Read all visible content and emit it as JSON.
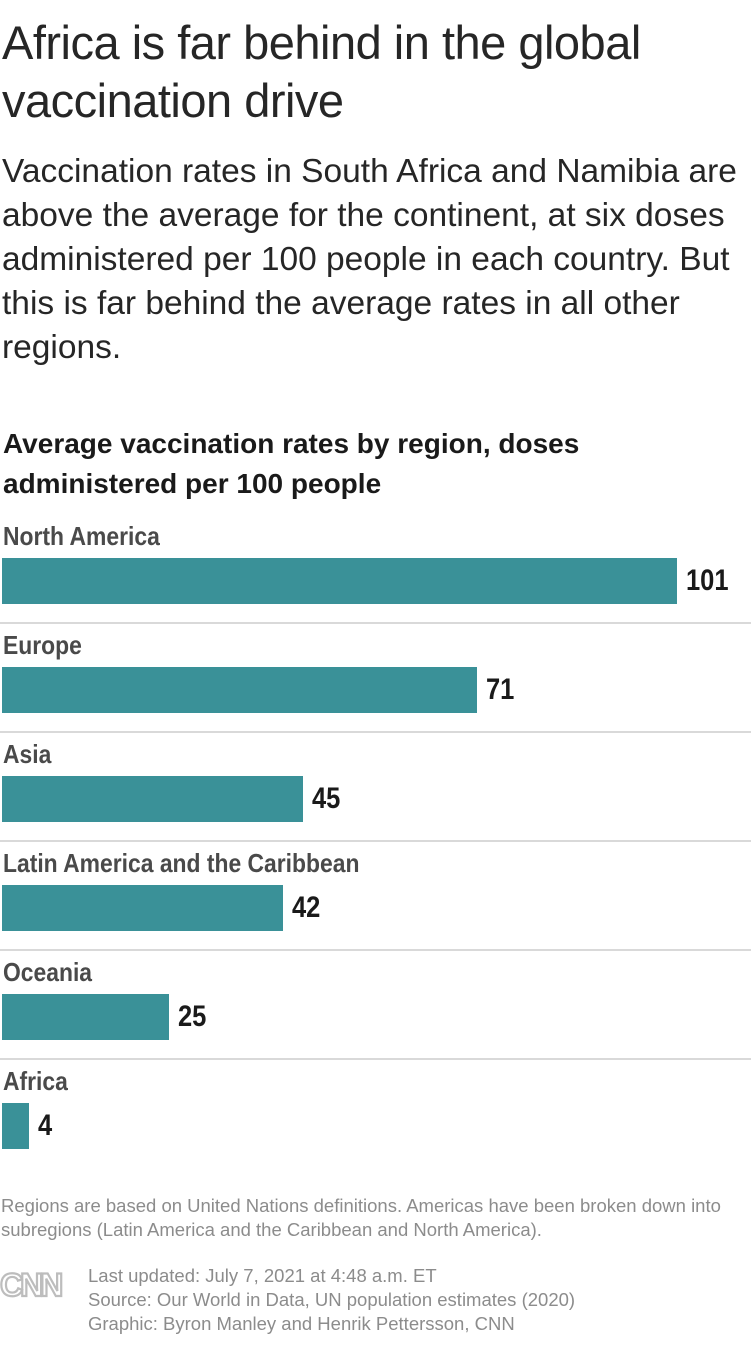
{
  "headline": "Africa is far behind in the global vaccination drive",
  "dek": "Vaccination rates in South Africa and Namibia are above the average for the continent, at six doses administered per 100 people in each country. But this is far behind the average rates in all other regions.",
  "chart_data": {
    "type": "bar",
    "orientation": "horizontal",
    "title": "Average vaccination rates by region, doses administered per 100 people",
    "categories": [
      "North America",
      "Europe",
      "Asia",
      "Latin America and the Caribbean",
      "Oceania",
      "Africa"
    ],
    "values": [
      101,
      71,
      45,
      42,
      25,
      4
    ],
    "value_labels": [
      "101",
      "71",
      "45",
      "42",
      "25",
      "4"
    ],
    "xlim": [
      0,
      101
    ],
    "grid": false,
    "legend": "none",
    "bar_color": "#3a9198"
  },
  "note": "Regions are based on United Nations definitions. Americas have been broken down into subregions (Latin America and the Caribbean and North America).",
  "footer": {
    "logo_icon": "cnn-logo-icon",
    "logo_text": "CNN",
    "updated": "Last updated: July 7, 2021 at 4:48 a.m. ET",
    "source": "Source: Our World in Data, UN population estimates (2020)",
    "graphic": "Graphic: Byron Manley and Henrik Pettersson, CNN"
  }
}
